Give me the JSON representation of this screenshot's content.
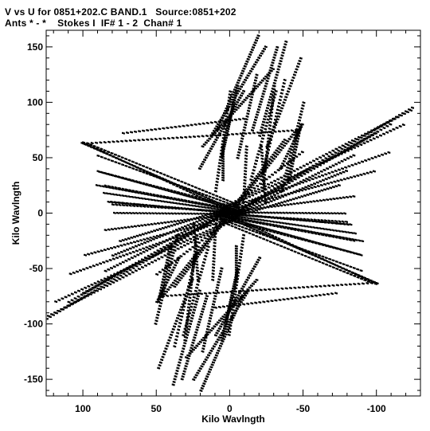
{
  "chart_data": {
    "type": "scatter",
    "title": "V vs U for 0851+202.C BAND.1   Source:0851+202",
    "subtitle": "Ants * - *    Stokes I  IF# 1 - 2  Chan# 1",
    "xlabel": "Kilo Wavlngth",
    "ylabel": "Kilo Wavlngth",
    "xlim": [
      125,
      -130
    ],
    "ylim": [
      -165,
      165
    ],
    "x_ticks": [
      100,
      50,
      0,
      -50,
      -100
    ],
    "y_ticks": [
      150,
      100,
      50,
      0,
      -50,
      -100,
      -150
    ],
    "x_tick_labels": [
      "100",
      "50",
      "0",
      "-50",
      "-100"
    ],
    "y_tick_labels": [
      "150",
      "100",
      "50",
      "0",
      "-50",
      "-100",
      "-150"
    ],
    "grid": false,
    "marker_color": "#000000",
    "tracks": [
      {
        "from": [
          100,
          63
        ],
        "to": [
          -5,
          2
        ],
        "samples": 50
      },
      {
        "from": [
          88,
          37
        ],
        "to": [
          -5,
          3
        ],
        "samples": 44
      },
      {
        "from": [
          90,
          25
        ],
        "to": [
          -5,
          2
        ],
        "samples": 44
      },
      {
        "from": [
          85,
          18
        ],
        "to": [
          -5,
          1
        ],
        "samples": 42
      },
      {
        "from": [
          82,
          10
        ],
        "to": [
          -5,
          0
        ],
        "samples": 40
      },
      {
        "from": [
          78,
          0
        ],
        "to": [
          -5,
          -1
        ],
        "samples": 38
      },
      {
        "from": [
          98,
          -38
        ],
        "to": [
          -5,
          -2
        ],
        "samples": 46
      },
      {
        "from": [
          108,
          -55
        ],
        "to": [
          -5,
          -3
        ],
        "samples": 50
      },
      {
        "from": [
          118,
          -80
        ],
        "to": [
          -5,
          -4
        ],
        "samples": 55
      },
      {
        "from": [
          123,
          -93
        ],
        "to": [
          -5,
          -5
        ],
        "samples": 58
      },
      {
        "from": [
          -5,
          2
        ],
        "to": [
          -125,
          95
        ],
        "samples": 55
      },
      {
        "from": [
          -5,
          1
        ],
        "to": [
          -110,
          80
        ],
        "samples": 48
      },
      {
        "from": [
          -5,
          0
        ],
        "to": [
          -100,
          72
        ],
        "samples": 45
      },
      {
        "from": [
          -5,
          -1
        ],
        "to": [
          -85,
          52
        ],
        "samples": 40
      },
      {
        "from": [
          -5,
          -2
        ],
        "to": [
          -80,
          38
        ],
        "samples": 38
      },
      {
        "from": [
          -5,
          -3
        ],
        "to": [
          -75,
          25
        ],
        "samples": 36
      },
      {
        "from": [
          5,
          0
        ],
        "to": [
          -85,
          15
        ],
        "samples": 40
      },
      {
        "from": [
          5,
          -1
        ],
        "to": [
          -80,
          -8
        ],
        "samples": 36
      },
      {
        "from": [
          5,
          -3
        ],
        "to": [
          -85,
          -25
        ],
        "samples": 38
      },
      {
        "from": [
          5,
          -5
        ],
        "to": [
          -90,
          -38
        ],
        "samples": 40
      },
      {
        "from": [
          5,
          -6
        ],
        "to": [
          -90,
          -52
        ],
        "samples": 40
      },
      {
        "from": [
          5,
          -8
        ],
        "to": [
          -95,
          -62
        ],
        "samples": 42
      },
      {
        "from": [
          0,
          -2
        ],
        "to": [
          -100,
          -64
        ],
        "samples": 44
      },
      {
        "from": [
          45,
          -75
        ],
        "to": [
          -100,
          -63
        ],
        "samples": 50
      },
      {
        "from": [
          72,
          72
        ],
        "to": [
          -10,
          85
        ],
        "samples": 30
      },
      {
        "from": [
          0,
          0
        ],
        "to": [
          -38,
          66
        ],
        "samples": 34
      },
      {
        "from": [
          0,
          0
        ],
        "to": [
          45,
          -75
        ],
        "samples": 38
      },
      {
        "from": [
          0,
          0
        ],
        "to": [
          80,
          10
        ],
        "samples": 30
      },
      {
        "from": [
          -5,
          10
        ],
        "to": [
          -50,
          55
        ],
        "samples": 22
      },
      {
        "from": [
          18,
          60
        ],
        "to": [
          -30,
          130
        ],
        "samples": 40
      },
      {
        "from": [
          12,
          70
        ],
        "to": [
          -25,
          150
        ],
        "samples": 40
      },
      {
        "from": [
          8,
          75
        ],
        "to": [
          -20,
          160
        ],
        "samples": 40
      },
      {
        "from": [
          5,
          50
        ],
        "to": [
          -5,
          110
        ],
        "samples": 30
      },
      {
        "from": [
          20,
          40
        ],
        "to": [
          -10,
          110
        ],
        "samples": 35
      },
      {
        "from": [
          -35,
          40
        ],
        "to": [
          -50,
          80
        ],
        "samples": 18
      },
      {
        "from": [
          -40,
          30
        ],
        "to": [
          -48,
          75
        ],
        "samples": 18
      },
      {
        "from": [
          -22,
          30
        ],
        "to": [
          -38,
          120
        ],
        "samples": 30
      },
      {
        "from": [
          -15,
          30
        ],
        "to": [
          -32,
          110
        ],
        "samples": 28
      },
      {
        "from": [
          25,
          -60
        ],
        "to": [
          48,
          -140
        ],
        "samples": 32
      },
      {
        "from": [
          20,
          -70
        ],
        "to": [
          38,
          -155
        ],
        "samples": 34
      },
      {
        "from": [
          15,
          -75
        ],
        "to": [
          32,
          -150
        ],
        "samples": 32
      },
      {
        "from": [
          5,
          -50
        ],
        "to": [
          18,
          -125
        ],
        "samples": 30
      },
      {
        "from": [
          -5,
          -60
        ],
        "to": [
          5,
          -115
        ],
        "samples": 26
      },
      {
        "from": [
          35,
          -20
        ],
        "to": [
          50,
          -100
        ],
        "samples": 30
      },
      {
        "from": [
          40,
          -30
        ],
        "to": [
          48,
          -80
        ],
        "samples": 20
      },
      {
        "from": [
          -10,
          -20
        ],
        "to": [
          0,
          -110
        ],
        "samples": 32
      },
      {
        "from": [
          22,
          -20
        ],
        "to": [
          30,
          -115
        ],
        "samples": 32
      },
      {
        "from": [
          -5,
          -30
        ],
        "to": [
          -5,
          -60
        ],
        "samples": 14
      },
      {
        "from": [
          -25,
          10
        ],
        "to": [
          -22,
          60
        ],
        "samples": 18
      },
      {
        "from": [
          -10,
          10
        ],
        "to": [
          -12,
          60
        ],
        "samples": 18
      }
    ]
  }
}
